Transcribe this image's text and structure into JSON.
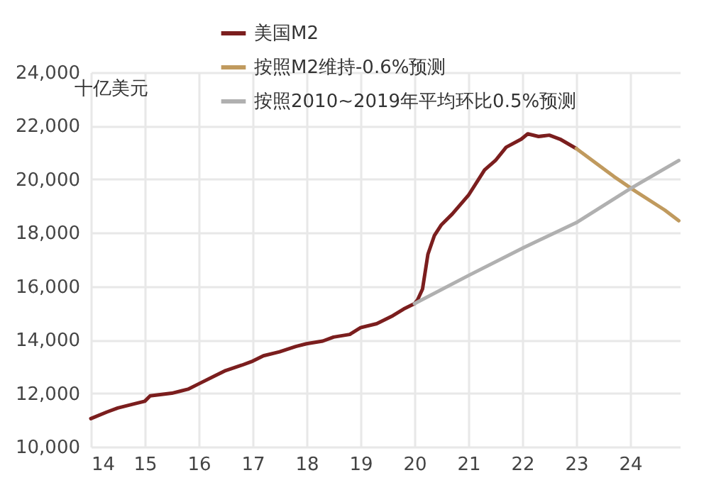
{
  "chart_data": {
    "type": "line",
    "ylabel": "十亿美元",
    "xlim": [
      14,
      24.92
    ],
    "xticks": [
      14,
      15,
      16,
      17,
      18,
      19,
      20,
      21,
      22,
      23,
      24
    ],
    "ylim": [
      10000,
      24000
    ],
    "yticks": [
      {
        "value": 10000,
        "label": "10,000"
      },
      {
        "value": 12000,
        "label": "12,000"
      },
      {
        "value": 14000,
        "label": "14,000"
      },
      {
        "value": 16000,
        "label": "16,000"
      },
      {
        "value": 18000,
        "label": "18,000"
      },
      {
        "value": 20000,
        "label": "20,000"
      },
      {
        "value": 22000,
        "label": "22,000"
      },
      {
        "value": 24000,
        "label": "24,000"
      }
    ],
    "grid": true,
    "legend": "top",
    "line_style": "solid",
    "marker": "none",
    "series": [
      {
        "name": "美国M2",
        "color": "#7b1e1e",
        "x": [
          14,
          14.3,
          14.5,
          14.8,
          15,
          15.1,
          15.5,
          15.8,
          16,
          16.3,
          16.5,
          16.8,
          17,
          17.2,
          17.5,
          17.8,
          18,
          18.3,
          18.5,
          18.8,
          19,
          19.3,
          19.6,
          19.8,
          20,
          20.06,
          20.15,
          20.25,
          20.37,
          20.5,
          20.7,
          21,
          21.3,
          21.5,
          21.7,
          21.98,
          22.1,
          22.3,
          22.5,
          22.7,
          23
        ],
        "values": [
          11050,
          11300,
          11450,
          11600,
          11700,
          11900,
          12000,
          12150,
          12350,
          12650,
          12850,
          13050,
          13200,
          13400,
          13550,
          13750,
          13850,
          13950,
          14100,
          14200,
          14450,
          14600,
          14900,
          15150,
          15350,
          15500,
          15900,
          17200,
          17900,
          18300,
          18700,
          19400,
          20350,
          20700,
          21200,
          21500,
          21700,
          21600,
          21650,
          21500,
          21150
        ]
      },
      {
        "name": "按照M2维持-0.6%预测",
        "color": "#c09a5e",
        "x": [
          23,
          23.7,
          24.1,
          24.64,
          24.9
        ],
        "values": [
          21150,
          20100,
          19550,
          18850,
          18450
        ]
      },
      {
        "name": "按照2010~2019年平均环比0.5%预测",
        "color": "#b0b0b0",
        "x": [
          20,
          21,
          22.03,
          23.02,
          24,
          24.9
        ],
        "values": [
          15350,
          16400,
          17450,
          18400,
          19650,
          20700
        ]
      }
    ]
  }
}
